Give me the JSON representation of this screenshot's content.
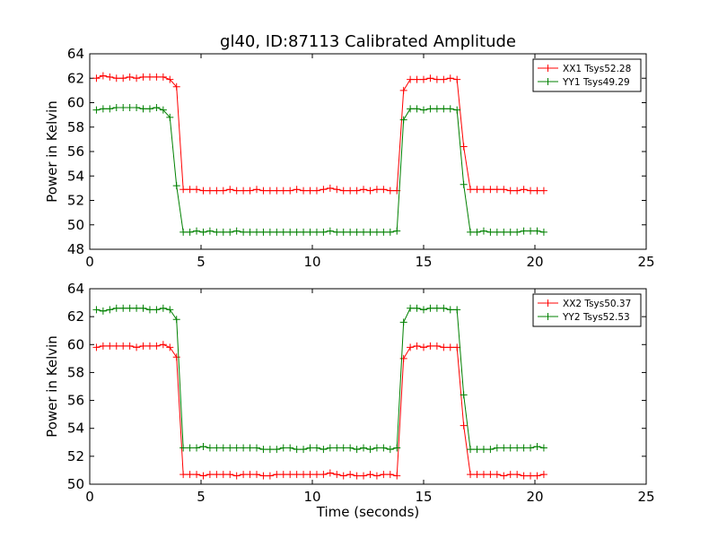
{
  "chart_data": [
    {
      "type": "line",
      "title": "gl40, ID:87113 Calibrated Amplitude",
      "xlabel": "",
      "ylabel": "Power in Kelvin",
      "xlim": [
        0,
        25
      ],
      "ylim": [
        48,
        64
      ],
      "xticks": [
        0,
        5,
        10,
        15,
        20,
        25
      ],
      "yticks": [
        48,
        50,
        52,
        54,
        56,
        58,
        60,
        62,
        64
      ],
      "legend_position": "top-right",
      "series": [
        {
          "name": "XX1 Tsys52.28",
          "color": "#ff0000",
          "x": [
            0.3,
            0.6,
            0.9,
            1.2,
            1.5,
            1.8,
            2.1,
            2.4,
            2.7,
            3.0,
            3.3,
            3.6,
            3.9,
            4.2,
            4.5,
            4.8,
            5.1,
            5.4,
            5.7,
            6.0,
            6.3,
            6.6,
            6.9,
            7.2,
            7.5,
            7.8,
            8.1,
            8.4,
            8.7,
            9.0,
            9.3,
            9.6,
            9.9,
            10.2,
            10.5,
            10.8,
            11.1,
            11.4,
            11.7,
            12.0,
            12.3,
            12.6,
            12.9,
            13.2,
            13.5,
            13.8,
            14.1,
            14.4,
            14.7,
            15.0,
            15.3,
            15.6,
            15.9,
            16.2,
            16.5,
            16.8,
            17.1,
            17.4,
            17.7,
            18.0,
            18.3,
            18.6,
            18.9,
            19.2,
            19.5,
            19.8,
            20.1,
            20.4
          ],
          "y": [
            62.0,
            62.2,
            62.1,
            62.0,
            62.0,
            62.1,
            62.0,
            62.1,
            62.1,
            62.1,
            62.1,
            61.9,
            61.3,
            52.9,
            52.9,
            52.9,
            52.8,
            52.8,
            52.8,
            52.8,
            52.9,
            52.8,
            52.8,
            52.8,
            52.9,
            52.8,
            52.8,
            52.8,
            52.8,
            52.8,
            52.9,
            52.8,
            52.8,
            52.8,
            52.9,
            53.0,
            52.9,
            52.8,
            52.8,
            52.8,
            52.9,
            52.8,
            52.9,
            52.9,
            52.8,
            52.8,
            61.0,
            61.9,
            61.9,
            61.9,
            62.0,
            61.9,
            61.9,
            62.0,
            61.9,
            56.4,
            52.9,
            52.9,
            52.9,
            52.9,
            52.9,
            52.9,
            52.8,
            52.8,
            52.9,
            52.8,
            52.8,
            52.8
          ]
        },
        {
          "name": "YY1 Tsys49.29",
          "color": "#008000",
          "x": [
            0.3,
            0.6,
            0.9,
            1.2,
            1.5,
            1.8,
            2.1,
            2.4,
            2.7,
            3.0,
            3.3,
            3.6,
            3.9,
            4.2,
            4.5,
            4.8,
            5.1,
            5.4,
            5.7,
            6.0,
            6.3,
            6.6,
            6.9,
            7.2,
            7.5,
            7.8,
            8.1,
            8.4,
            8.7,
            9.0,
            9.3,
            9.6,
            9.9,
            10.2,
            10.5,
            10.8,
            11.1,
            11.4,
            11.7,
            12.0,
            12.3,
            12.6,
            12.9,
            13.2,
            13.5,
            13.8,
            14.1,
            14.4,
            14.7,
            15.0,
            15.3,
            15.6,
            15.9,
            16.2,
            16.5,
            16.8,
            17.1,
            17.4,
            17.7,
            18.0,
            18.3,
            18.6,
            18.9,
            19.2,
            19.5,
            19.8,
            20.1,
            20.4
          ],
          "y": [
            59.4,
            59.5,
            59.5,
            59.6,
            59.6,
            59.6,
            59.6,
            59.5,
            59.5,
            59.6,
            59.4,
            58.8,
            53.2,
            49.4,
            49.4,
            49.5,
            49.4,
            49.5,
            49.4,
            49.4,
            49.4,
            49.5,
            49.4,
            49.4,
            49.4,
            49.4,
            49.4,
            49.4,
            49.4,
            49.4,
            49.4,
            49.4,
            49.4,
            49.4,
            49.4,
            49.5,
            49.4,
            49.4,
            49.4,
            49.4,
            49.4,
            49.4,
            49.4,
            49.4,
            49.4,
            49.5,
            58.6,
            59.5,
            59.5,
            59.4,
            59.5,
            59.5,
            59.5,
            59.5,
            59.4,
            53.3,
            49.4,
            49.4,
            49.5,
            49.4,
            49.4,
            49.4,
            49.4,
            49.4,
            49.5,
            49.5,
            49.5,
            49.4
          ]
        }
      ]
    },
    {
      "type": "line",
      "title": "",
      "xlabel": "Time (seconds)",
      "ylabel": "Power in Kelvin",
      "xlim": [
        0,
        25
      ],
      "ylim": [
        50,
        64
      ],
      "xticks": [
        0,
        5,
        10,
        15,
        20,
        25
      ],
      "yticks": [
        50,
        52,
        54,
        56,
        58,
        60,
        62,
        64
      ],
      "legend_position": "top-right",
      "series": [
        {
          "name": "XX2 Tsys50.37",
          "color": "#ff0000",
          "x": [
            0.3,
            0.6,
            0.9,
            1.2,
            1.5,
            1.8,
            2.1,
            2.4,
            2.7,
            3.0,
            3.3,
            3.6,
            3.9,
            4.2,
            4.5,
            4.8,
            5.1,
            5.4,
            5.7,
            6.0,
            6.3,
            6.6,
            6.9,
            7.2,
            7.5,
            7.8,
            8.1,
            8.4,
            8.7,
            9.0,
            9.3,
            9.6,
            9.9,
            10.2,
            10.5,
            10.8,
            11.1,
            11.4,
            11.7,
            12.0,
            12.3,
            12.6,
            12.9,
            13.2,
            13.5,
            13.8,
            14.1,
            14.4,
            14.7,
            15.0,
            15.3,
            15.6,
            15.9,
            16.2,
            16.5,
            16.8,
            17.1,
            17.4,
            17.7,
            18.0,
            18.3,
            18.6,
            18.9,
            19.2,
            19.5,
            19.8,
            20.1,
            20.4
          ],
          "y": [
            59.8,
            59.9,
            59.9,
            59.9,
            59.9,
            59.9,
            59.8,
            59.9,
            59.9,
            59.9,
            60.0,
            59.8,
            59.1,
            50.7,
            50.7,
            50.7,
            50.6,
            50.7,
            50.7,
            50.7,
            50.7,
            50.6,
            50.7,
            50.7,
            50.7,
            50.6,
            50.6,
            50.7,
            50.7,
            50.7,
            50.7,
            50.7,
            50.7,
            50.7,
            50.7,
            50.8,
            50.7,
            50.6,
            50.7,
            50.6,
            50.6,
            50.7,
            50.6,
            50.7,
            50.7,
            50.6,
            59.0,
            59.8,
            59.9,
            59.8,
            59.9,
            59.9,
            59.8,
            59.8,
            59.8,
            54.2,
            50.7,
            50.7,
            50.7,
            50.7,
            50.7,
            50.6,
            50.7,
            50.7,
            50.6,
            50.6,
            50.6,
            50.7
          ]
        },
        {
          "name": "YY2 Tsys52.53",
          "color": "#008000",
          "x": [
            0.3,
            0.6,
            0.9,
            1.2,
            1.5,
            1.8,
            2.1,
            2.4,
            2.7,
            3.0,
            3.3,
            3.6,
            3.9,
            4.2,
            4.5,
            4.8,
            5.1,
            5.4,
            5.7,
            6.0,
            6.3,
            6.6,
            6.9,
            7.2,
            7.5,
            7.8,
            8.1,
            8.4,
            8.7,
            9.0,
            9.3,
            9.6,
            9.9,
            10.2,
            10.5,
            10.8,
            11.1,
            11.4,
            11.7,
            12.0,
            12.3,
            12.6,
            12.9,
            13.2,
            13.5,
            13.8,
            14.1,
            14.4,
            14.7,
            15.0,
            15.3,
            15.6,
            15.9,
            16.2,
            16.5,
            16.8,
            17.1,
            17.4,
            17.7,
            18.0,
            18.3,
            18.6,
            18.9,
            19.2,
            19.5,
            19.8,
            20.1,
            20.4
          ],
          "y": [
            62.5,
            62.4,
            62.5,
            62.6,
            62.6,
            62.6,
            62.6,
            62.6,
            62.5,
            62.5,
            62.6,
            62.5,
            61.8,
            52.6,
            52.6,
            52.6,
            52.7,
            52.6,
            52.6,
            52.6,
            52.6,
            52.6,
            52.6,
            52.6,
            52.6,
            52.5,
            52.5,
            52.5,
            52.6,
            52.6,
            52.5,
            52.5,
            52.6,
            52.6,
            52.5,
            52.6,
            52.6,
            52.6,
            52.6,
            52.5,
            52.6,
            52.5,
            52.6,
            52.6,
            52.5,
            52.6,
            61.6,
            62.6,
            62.6,
            62.5,
            62.6,
            62.6,
            62.6,
            62.5,
            62.5,
            56.4,
            52.5,
            52.5,
            52.5,
            52.5,
            52.6,
            52.6,
            52.6,
            52.6,
            52.6,
            52.6,
            52.7,
            52.6
          ]
        }
      ]
    }
  ]
}
